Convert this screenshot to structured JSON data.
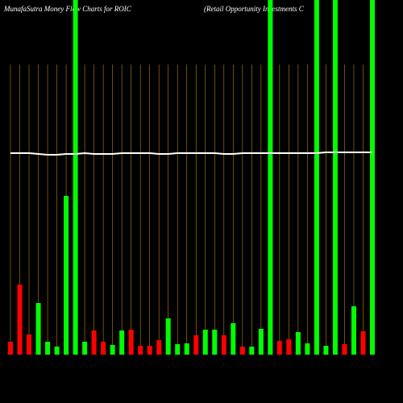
{
  "chart_data": {
    "type": "bar",
    "title": "MunafaSutra  Money Flow  Charts for ROIC",
    "subtitle": "(Retail Opportunity Investments C",
    "categories": [
      null,
      null,
      null,
      null,
      null,
      null,
      null,
      null,
      null,
      null,
      null,
      null,
      null,
      null,
      null,
      null,
      null,
      null,
      null,
      null,
      null,
      null,
      null,
      null,
      null,
      null,
      null,
      null,
      null,
      null,
      null,
      null,
      null,
      null,
      null,
      null,
      null,
      null,
      null,
      null
    ],
    "values": [
      16,
      87,
      25,
      64,
      16,
      10,
      197,
      440,
      16,
      30,
      16,
      12,
      30,
      31,
      11,
      11,
      18,
      45,
      13,
      14,
      24,
      31,
      31,
      24,
      39,
      10,
      10,
      32,
      440,
      17,
      19,
      28,
      14,
      440,
      11,
      440,
      13,
      60,
      29,
      440
    ],
    "colors": [
      "#ff0000",
      "#ff0000",
      "#ff0000",
      "#00ff00",
      "#00ff00",
      "#00ff00",
      "#00ff00",
      "#00ff00",
      "#00ff00",
      "#ff0000",
      "#ff0000",
      "#00ff00",
      "#00ff00",
      "#ff0000",
      "#ff0000",
      "#ff0000",
      "#ff0000",
      "#00ff00",
      "#00ff00",
      "#00ff00",
      "#ff0000",
      "#00ff00",
      "#00ff00",
      "#ff0000",
      "#00ff00",
      "#ff0000",
      "#00ff00",
      "#00ff00",
      "#00ff00",
      "#ff0000",
      "#ff0000",
      "#00ff00",
      "#00ff00",
      "#00ff00",
      "#00ff00",
      "#00ff00",
      "#ff0000",
      "#00ff00",
      "#ff0000",
      "#00ff00"
    ],
    "line_values": [
      250,
      250,
      250,
      249,
      248,
      248,
      249,
      249,
      250,
      249,
      249,
      249,
      250,
      250,
      250,
      250,
      249,
      249,
      250,
      250,
      250,
      250,
      250,
      249,
      249,
      250,
      250,
      250,
      250,
      250,
      250,
      250,
      250,
      250,
      251,
      251,
      251,
      251,
      251,
      251
    ],
    "line_color": "#ffffff",
    "grid_color": "#b8860b",
    "ylim": [
      0,
      440
    ]
  }
}
